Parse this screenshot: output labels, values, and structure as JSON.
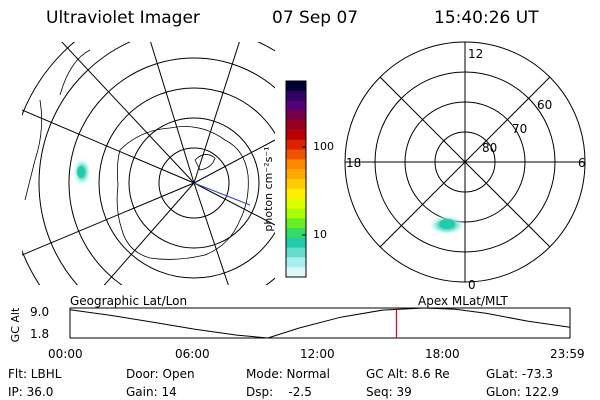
{
  "header": {
    "title": "Ultraviolet Imager",
    "date": "07 Sep 07",
    "time": "15:40:26 UT"
  },
  "colorbar": {
    "unit_label": "photon cm⁻²s⁻¹",
    "ticks": [
      "100",
      "10"
    ],
    "colors": [
      "#000033",
      "#330066",
      "#550077",
      "#770044",
      "#990022",
      "#bb0000",
      "#dd2200",
      "#ee5500",
      "#ff8800",
      "#ffaa00",
      "#ffcc00",
      "#ffee00",
      "#ddff00",
      "#aaff00",
      "#66ee22",
      "#33dd66",
      "#22ccaa",
      "#66ddcc",
      "#aaeeee",
      "#ddf7f7"
    ]
  },
  "geo_map": {
    "label": "Geographic Lat/Lon"
  },
  "mag_map": {
    "label": "Apex MLat/MLT",
    "mlt_labels": [
      "12",
      "18",
      "6",
      "0"
    ],
    "mlat_labels": [
      "60",
      "70",
      "80"
    ]
  },
  "chart_data": {
    "type": "line",
    "title": "",
    "ylabel": "GC Alt",
    "xlabel": "",
    "ylim": [
      1.8,
      9.0
    ],
    "yticks": [
      "9.0",
      "1.8"
    ],
    "xticks": [
      "00:00",
      "06:00",
      "12:00",
      "18:00",
      "23:59"
    ],
    "series": [
      {
        "x": [
          0,
          2,
          4,
          6,
          8,
          9.5,
          11,
          13,
          15,
          17,
          18.5,
          20,
          22,
          24
        ],
        "y": [
          8.6,
          7.2,
          5.6,
          3.9,
          2.5,
          1.8,
          4.2,
          6.8,
          8.5,
          9.0,
          8.7,
          7.7,
          5.8,
          4.4
        ]
      }
    ],
    "current_time_marker": 15.67
  },
  "status": {
    "flt": "Flt: LBHL",
    "ip": "IP: 36.0",
    "door": "Door: Open",
    "gain": "Gain: 14",
    "mode": "Mode: Normal",
    "dsp": "Dsp:    -2.5",
    "gcalt": "GC Alt: 8.6 Re",
    "seq": "Seq: 39",
    "glat": "GLat: -73.3",
    "glon": "GLon: 122.9"
  }
}
